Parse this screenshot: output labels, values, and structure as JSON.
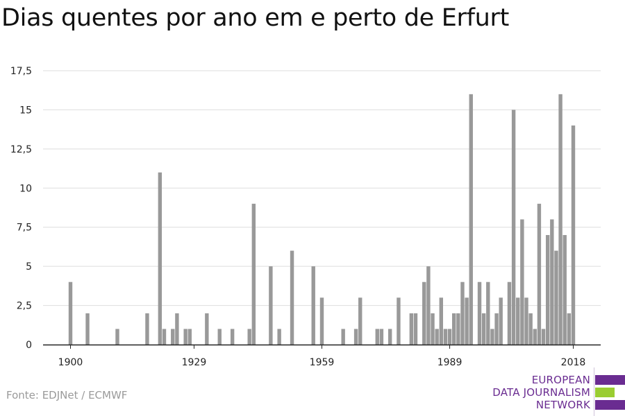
{
  "header": {
    "title": "Dias quentes por ano em e perto de Erfurt"
  },
  "footer": {
    "source": "Fonte: EDJNet / ECMWF"
  },
  "logo": {
    "line1": "EUROPEAN",
    "line2": "DATA JOURNALISM",
    "line3": "NETWORK",
    "colors": {
      "purple": "#6a2c91",
      "green": "#9acd32"
    }
  },
  "chart_data": {
    "type": "bar",
    "title": "Dias quentes por ano em e perto de Erfurt",
    "xlabel": "",
    "ylabel": "",
    "xlim": [
      1897,
      2023
    ],
    "ylim": [
      0,
      17.5
    ],
    "y_ticks": [
      0,
      2.5,
      5,
      7.5,
      10,
      12.5,
      15,
      17.5
    ],
    "y_tick_labels": [
      "0",
      "2,5",
      "5",
      "7,5",
      "10",
      "12,5",
      "15",
      "17,5"
    ],
    "x_ticks": [
      1900,
      1929,
      1959,
      1989,
      2018
    ],
    "x_tick_labels": [
      "1900",
      "1929",
      "1959",
      "1989",
      "2018"
    ],
    "grid": true,
    "bar_color": "#999999",
    "x": [
      1900,
      1904,
      1911,
      1918,
      1921,
      1922,
      1924,
      1925,
      1927,
      1928,
      1932,
      1935,
      1938,
      1942,
      1943,
      1947,
      1949,
      1952,
      1957,
      1959,
      1964,
      1967,
      1968,
      1972,
      1973,
      1975,
      1977,
      1980,
      1981,
      1983,
      1984,
      1985,
      1986,
      1987,
      1988,
      1989,
      1990,
      1991,
      1992,
      1993,
      1994,
      1996,
      1997,
      1998,
      1999,
      2000,
      2001,
      2003,
      2004,
      2005,
      2006,
      2007,
      2008,
      2009,
      2010,
      2011,
      2012,
      2013,
      2014,
      2015,
      2016,
      2017,
      2018
    ],
    "values": [
      4,
      2,
      1,
      2,
      11,
      1,
      1,
      2,
      1,
      1,
      2,
      1,
      1,
      1,
      9,
      5,
      1,
      6,
      5,
      3,
      1,
      1,
      3,
      1,
      1,
      1,
      3,
      2,
      2,
      4,
      5,
      2,
      1,
      3,
      1,
      1,
      2,
      2,
      4,
      3,
      16,
      4,
      2,
      4,
      1,
      2,
      3,
      4,
      15,
      3,
      8,
      3,
      2,
      1,
      9,
      1,
      7,
      8,
      6,
      16,
      7,
      2,
      14
    ]
  }
}
